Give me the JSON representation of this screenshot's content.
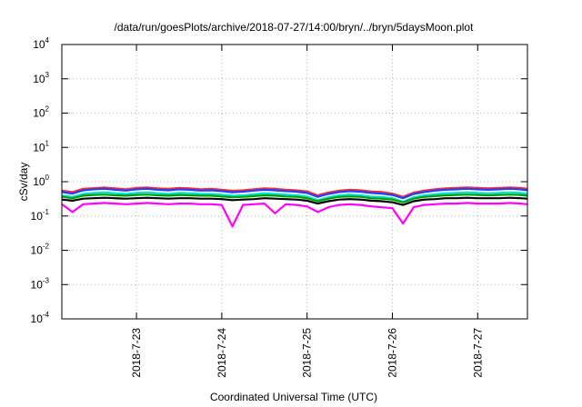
{
  "chart_data": {
    "type": "line",
    "title": "/data/run/goesPlots/archive/2018-07-27/14:00/bryn/../bryn/5daysMoon.plot",
    "xlabel": "Coordinated Universal Time (UTC)",
    "ylabel": "cSv/day",
    "y_scale": "log",
    "ylim": [
      0.0001,
      10000
    ],
    "y_ticks": [
      {
        "base": "10",
        "exp": "-4",
        "value": 0.0001
      },
      {
        "base": "10",
        "exp": "-3",
        "value": 0.001
      },
      {
        "base": "10",
        "exp": "-2",
        "value": 0.01
      },
      {
        "base": "10",
        "exp": "-1",
        "value": 0.1
      },
      {
        "base": "10",
        "exp": "0",
        "value": 1
      },
      {
        "base": "10",
        "exp": "1",
        "value": 10
      },
      {
        "base": "10",
        "exp": "2",
        "value": 100
      },
      {
        "base": "10",
        "exp": "3",
        "value": 1000
      },
      {
        "base": "10",
        "exp": "4",
        "value": 10000
      }
    ],
    "xlim": [
      "2018-07-22T03:00",
      "2018-07-27T14:00"
    ],
    "x_ticks": [
      {
        "label": "2018-7-23",
        "value": "2018-07-23T00:00"
      },
      {
        "label": "2018-7-24",
        "value": "2018-07-24T00:00"
      },
      {
        "label": "2018-7-25",
        "value": "2018-07-25T00:00"
      },
      {
        "label": "2018-7-26",
        "value": "2018-07-26T00:00"
      },
      {
        "label": "2018-7-27",
        "value": "2018-07-27T00:00"
      }
    ],
    "grid": true,
    "x": [
      "2018-07-22T03:00",
      "2018-07-22T06:00",
      "2018-07-22T09:00",
      "2018-07-22T12:00",
      "2018-07-22T15:00",
      "2018-07-22T18:00",
      "2018-07-22T21:00",
      "2018-07-23T00:00",
      "2018-07-23T03:00",
      "2018-07-23T06:00",
      "2018-07-23T09:00",
      "2018-07-23T12:00",
      "2018-07-23T15:00",
      "2018-07-23T18:00",
      "2018-07-23T21:00",
      "2018-07-24T00:00",
      "2018-07-24T03:00",
      "2018-07-24T06:00",
      "2018-07-24T09:00",
      "2018-07-24T12:00",
      "2018-07-24T15:00",
      "2018-07-24T18:00",
      "2018-07-24T21:00",
      "2018-07-25T00:00",
      "2018-07-25T03:00",
      "2018-07-25T06:00",
      "2018-07-25T09:00",
      "2018-07-25T12:00",
      "2018-07-25T15:00",
      "2018-07-25T18:00",
      "2018-07-25T21:00",
      "2018-07-26T00:00",
      "2018-07-26T03:00",
      "2018-07-26T06:00",
      "2018-07-26T09:00",
      "2018-07-26T12:00",
      "2018-07-26T15:00",
      "2018-07-26T18:00",
      "2018-07-26T21:00",
      "2018-07-27T00:00",
      "2018-07-27T03:00",
      "2018-07-27T06:00",
      "2018-07-27T09:00",
      "2018-07-27T12:00",
      "2018-07-27T14:00"
    ],
    "series": [
      {
        "color": "#ff2a2a",
        "values": [
          0.55,
          0.5,
          0.62,
          0.65,
          0.68,
          0.64,
          0.6,
          0.66,
          0.68,
          0.64,
          0.62,
          0.66,
          0.64,
          0.6,
          0.62,
          0.58,
          0.54,
          0.56,
          0.6,
          0.64,
          0.62,
          0.58,
          0.56,
          0.52,
          0.4,
          0.48,
          0.55,
          0.58,
          0.56,
          0.52,
          0.5,
          0.45,
          0.36,
          0.48,
          0.55,
          0.6,
          0.64,
          0.66,
          0.68,
          0.66,
          0.64,
          0.66,
          0.68,
          0.66,
          0.62
        ]
      },
      {
        "color": "#1f3fff",
        "values": [
          0.5,
          0.45,
          0.56,
          0.6,
          0.62,
          0.58,
          0.55,
          0.6,
          0.62,
          0.58,
          0.56,
          0.6,
          0.58,
          0.55,
          0.56,
          0.53,
          0.49,
          0.51,
          0.55,
          0.58,
          0.56,
          0.53,
          0.51,
          0.47,
          0.36,
          0.44,
          0.5,
          0.53,
          0.51,
          0.47,
          0.45,
          0.41,
          0.33,
          0.44,
          0.5,
          0.55,
          0.58,
          0.6,
          0.62,
          0.6,
          0.58,
          0.6,
          0.62,
          0.6,
          0.56
        ]
      },
      {
        "color": "#00e0e0",
        "values": [
          0.4,
          0.36,
          0.44,
          0.47,
          0.49,
          0.46,
          0.44,
          0.47,
          0.49,
          0.46,
          0.44,
          0.47,
          0.46,
          0.44,
          0.44,
          0.42,
          0.39,
          0.4,
          0.43,
          0.46,
          0.44,
          0.42,
          0.4,
          0.37,
          0.29,
          0.35,
          0.4,
          0.42,
          0.4,
          0.37,
          0.36,
          0.33,
          0.26,
          0.35,
          0.4,
          0.43,
          0.46,
          0.47,
          0.49,
          0.47,
          0.46,
          0.47,
          0.49,
          0.47,
          0.44
        ]
      },
      {
        "color": "#00a000",
        "values": [
          0.36,
          0.33,
          0.39,
          0.41,
          0.42,
          0.4,
          0.39,
          0.41,
          0.42,
          0.4,
          0.39,
          0.41,
          0.4,
          0.39,
          0.39,
          0.37,
          0.35,
          0.36,
          0.38,
          0.4,
          0.39,
          0.37,
          0.36,
          0.33,
          0.27,
          0.32,
          0.36,
          0.37,
          0.36,
          0.33,
          0.32,
          0.3,
          0.25,
          0.32,
          0.36,
          0.38,
          0.4,
          0.41,
          0.42,
          0.41,
          0.4,
          0.41,
          0.42,
          0.41,
          0.39
        ]
      },
      {
        "color": "#000000",
        "values": [
          0.3,
          0.28,
          0.32,
          0.33,
          0.34,
          0.33,
          0.32,
          0.33,
          0.34,
          0.33,
          0.32,
          0.33,
          0.33,
          0.32,
          0.32,
          0.31,
          0.29,
          0.3,
          0.31,
          0.33,
          0.32,
          0.31,
          0.3,
          0.28,
          0.23,
          0.27,
          0.3,
          0.31,
          0.3,
          0.28,
          0.27,
          0.25,
          0.21,
          0.27,
          0.3,
          0.31,
          0.33,
          0.33,
          0.34,
          0.33,
          0.33,
          0.33,
          0.34,
          0.33,
          0.32
        ]
      },
      {
        "color": "#ff00ff",
        "values": [
          0.22,
          0.13,
          0.22,
          0.23,
          0.24,
          0.23,
          0.22,
          0.23,
          0.24,
          0.23,
          0.22,
          0.23,
          0.23,
          0.22,
          0.22,
          0.21,
          0.05,
          0.21,
          0.22,
          0.23,
          0.12,
          0.22,
          0.21,
          0.19,
          0.13,
          0.18,
          0.21,
          0.22,
          0.21,
          0.19,
          0.18,
          0.17,
          0.06,
          0.18,
          0.21,
          0.22,
          0.23,
          0.23,
          0.24,
          0.23,
          0.23,
          0.23,
          0.24,
          0.23,
          0.22
        ]
      }
    ]
  }
}
